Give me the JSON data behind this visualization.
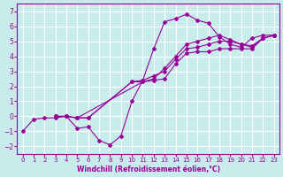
{
  "background_color": "#c8ecec",
  "grid_color": "#ffffff",
  "line_color": "#990099",
  "xlabel": "Windchill (Refroidissement éolien,°C)",
  "ylabel": "",
  "xlim": [
    -0.5,
    23.5
  ],
  "ylim": [
    -2.5,
    7.5
  ],
  "xticks": [
    0,
    1,
    2,
    3,
    4,
    5,
    6,
    7,
    8,
    9,
    10,
    11,
    12,
    13,
    14,
    15,
    16,
    17,
    18,
    19,
    20,
    21,
    22,
    23
  ],
  "yticks": [
    -2,
    -1,
    0,
    1,
    2,
    3,
    4,
    5,
    6,
    7
  ],
  "lines": [
    {
      "x": [
        0,
        1,
        2,
        3,
        4,
        5,
        6,
        7,
        8,
        9,
        10,
        11,
        12,
        13,
        14,
        15,
        16,
        17,
        18,
        19,
        20,
        21,
        22,
        23
      ],
      "y": [
        -1.0,
        -0.2,
        -0.1,
        -0.1,
        0.0,
        -0.8,
        -0.7,
        -1.6,
        -1.9,
        -1.3,
        1.0,
        2.4,
        4.5,
        6.3,
        6.5,
        6.8,
        6.4,
        6.2,
        5.3,
        4.8,
        4.6,
        5.2,
        5.4,
        5.4
      ]
    },
    {
      "x": [
        3,
        4,
        5,
        6,
        10,
        11,
        12,
        13,
        14,
        15,
        16,
        17,
        18,
        19,
        20,
        21,
        22,
        23
      ],
      "y": [
        0.0,
        0.0,
        -0.1,
        -0.1,
        2.3,
        2.3,
        2.4,
        2.5,
        3.5,
        4.2,
        4.3,
        4.3,
        4.5,
        4.5,
        4.5,
        4.5,
        5.2,
        5.4
      ]
    },
    {
      "x": [
        3,
        4,
        5,
        6,
        10,
        11,
        12,
        13,
        14,
        15,
        16,
        17,
        18,
        19,
        20,
        21,
        22,
        23
      ],
      "y": [
        0.0,
        0.0,
        -0.1,
        -0.1,
        2.3,
        2.4,
        2.7,
        3.0,
        3.8,
        4.5,
        4.6,
        4.8,
        5.0,
        5.0,
        4.8,
        4.7,
        5.2,
        5.4
      ]
    },
    {
      "x": [
        3,
        4,
        5,
        11,
        12,
        13,
        14,
        15,
        16,
        17,
        18,
        19,
        20,
        21,
        22,
        23
      ],
      "y": [
        0.0,
        0.0,
        -0.1,
        2.3,
        2.5,
        3.2,
        4.0,
        4.8,
        5.0,
        5.2,
        5.4,
        5.1,
        4.8,
        4.6,
        5.2,
        5.4
      ]
    }
  ]
}
